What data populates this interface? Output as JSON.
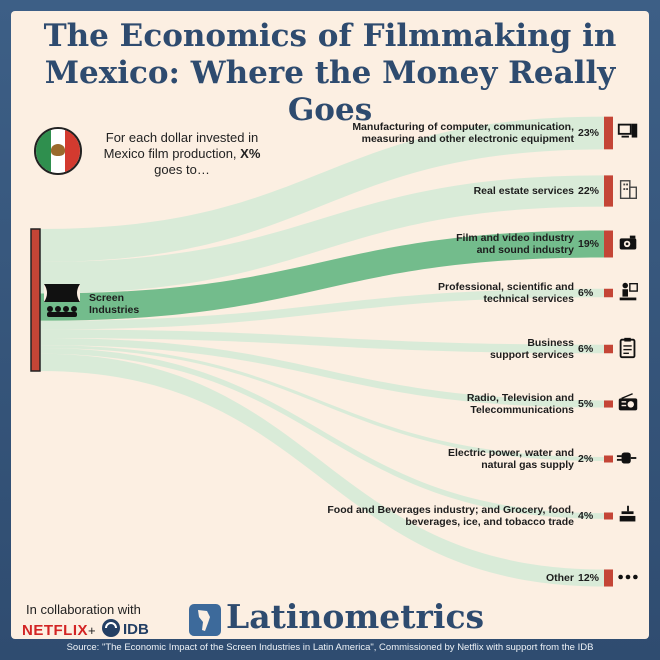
{
  "title_line1": "The Economics of Filmmaking in",
  "title_line2": "Mexico: Where the Money Really Goes",
  "intro": {
    "line1": "For each dollar invested in",
    "line2_prefix": "Mexico film production, ",
    "line2_bold": "X%",
    "line3": "goes to…"
  },
  "colors": {
    "background": "#3d5f86",
    "card": "#fcefe2",
    "title": "#2e4b6f",
    "node": "#c44536",
    "flow": "#d5ead7",
    "flow_highlight": "#6cb887"
  },
  "chart_data": {
    "type": "sankey",
    "source": {
      "label_line1": "Screen",
      "label_line2": "Industries"
    },
    "unit": "%",
    "targets": [
      {
        "label_lines": [
          "Manufacturing of computer, communication,",
          "measuring and other electronic equipment"
        ],
        "value": 23,
        "icon": "computer-icon",
        "highlight": false
      },
      {
        "label_lines": [
          "Real estate services"
        ],
        "value": 22,
        "icon": "building-icon",
        "highlight": false
      },
      {
        "label_lines": [
          "Film and video industry",
          "and sound industry"
        ],
        "value": 19,
        "icon": "projector-icon",
        "highlight": true
      },
      {
        "label_lines": [
          "Professional, scientific and",
          "technical services"
        ],
        "value": 6,
        "icon": "presenter-icon",
        "highlight": false
      },
      {
        "label_lines": [
          "Business",
          "support services"
        ],
        "value": 6,
        "icon": "clipboard-icon",
        "highlight": false
      },
      {
        "label_lines": [
          "Radio, Television and",
          "Telecommunications"
        ],
        "value": 5,
        "icon": "radio-icon",
        "highlight": false
      },
      {
        "label_lines": [
          "Electric power, water and",
          "natural gas supply"
        ],
        "value": 2,
        "icon": "plug-icon",
        "highlight": false
      },
      {
        "label_lines": [
          "Food and Beverages industry; and Grocery, food,",
          "beverages, ice, and tobacco trade"
        ],
        "value": 4,
        "icon": "food-icon",
        "highlight": false
      },
      {
        "label_lines": [
          "Other"
        ],
        "value": 12,
        "icon": "ellipsis-icon",
        "highlight": false
      }
    ]
  },
  "footer": {
    "collab": "In collaboration with",
    "netflix": "NETFLIX",
    "plus": "+",
    "idb": "IDB",
    "brand": "Latinometrics",
    "source": "Source: \"The Economic Impact of the Screen Industries in Latin America\", Commissioned by Netflix with support from the IDB"
  }
}
